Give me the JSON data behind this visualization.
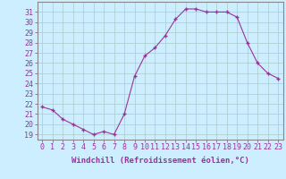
{
  "x": [
    0,
    1,
    2,
    3,
    4,
    5,
    6,
    7,
    8,
    9,
    10,
    11,
    12,
    13,
    14,
    15,
    16,
    17,
    18,
    19,
    20,
    21,
    22,
    23
  ],
  "y": [
    21.7,
    21.4,
    20.5,
    20.0,
    19.5,
    19.0,
    19.3,
    19.0,
    21.0,
    24.7,
    26.7,
    27.5,
    28.7,
    30.3,
    31.3,
    31.3,
    31.0,
    31.0,
    31.0,
    30.5,
    28.0,
    26.0,
    25.0,
    24.5
  ],
  "line_color": "#993399",
  "marker": "+",
  "bg_color": "#cceeff",
  "grid_color": "#aacccc",
  "xlabel": "Windchill (Refroidissement éolien,°C)",
  "ylabel_ticks": [
    19,
    20,
    21,
    22,
    23,
    24,
    25,
    26,
    27,
    28,
    29,
    30,
    31
  ],
  "ylim": [
    18.5,
    32.0
  ],
  "xlim": [
    -0.5,
    23.5
  ],
  "tick_color": "#993399",
  "label_color": "#993399",
  "xlabel_fontsize": 6.5,
  "tick_fontsize": 6.0
}
